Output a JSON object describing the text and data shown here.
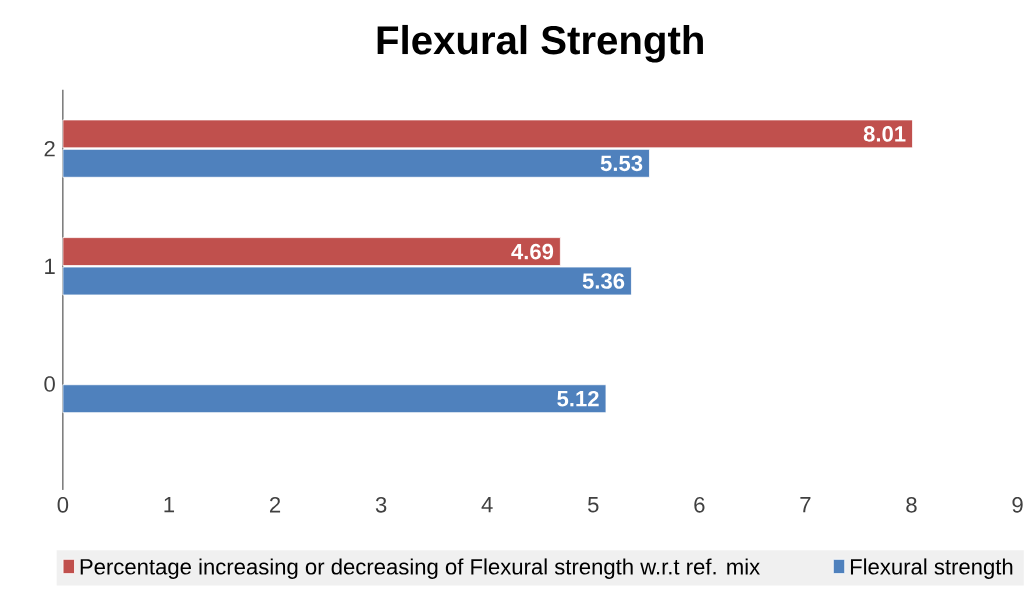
{
  "chart_data": {
    "type": "bar",
    "orientation": "horizontal",
    "title": "Flexural Strength",
    "categories": [
      "2",
      "1",
      "0"
    ],
    "series": [
      {
        "name": "Percentage increasing or decreasing of Flexural strength w.r.t ref. mix",
        "color": "#c0504d",
        "values": [
          8.01,
          4.69,
          null
        ],
        "value_labels": [
          "8.01",
          "4.69",
          null
        ]
      },
      {
        "name": "Flexural strength",
        "color": "#4f81bd",
        "values": [
          5.53,
          5.36,
          5.12
        ],
        "value_labels": [
          "5.53",
          "5.36",
          "5.12"
        ]
      }
    ],
    "xlim": [
      0,
      9
    ],
    "xticks": [
      0,
      1,
      2,
      3,
      4,
      5,
      6,
      7,
      8,
      9
    ],
    "legend": "bottom",
    "grid": false
  }
}
